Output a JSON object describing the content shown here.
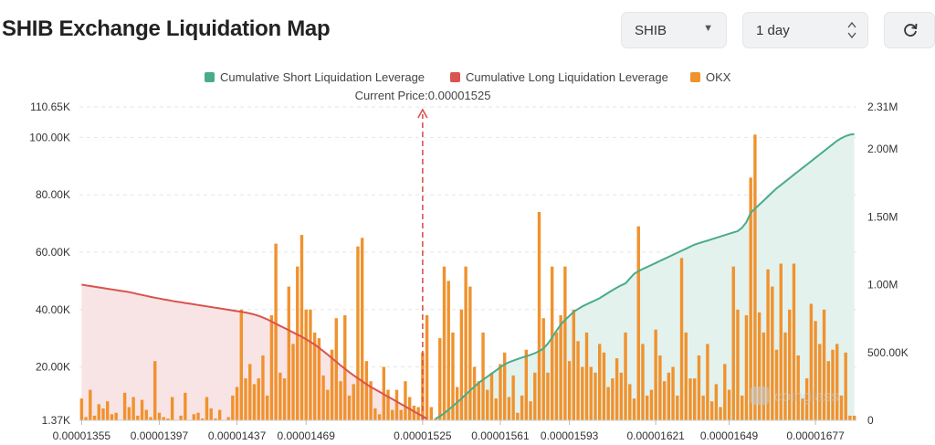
{
  "header": {
    "title": "SHIB Exchange Liquidation Map",
    "symbol_select": "SHIB",
    "range_select": "1 day"
  },
  "colors": {
    "short": "#4aab8a",
    "short_fill": "#e3f2ed",
    "long": "#d9534f",
    "long_fill": "#f8e4e4",
    "bar": "#f0922e",
    "price_marker": "#d9534f"
  },
  "chart_data": {
    "type": "bar",
    "legend": [
      "Cumulative Short Liquidation Leverage",
      "Cumulative Long Liquidation Leverage",
      "OKX"
    ],
    "legend_position": "top-center",
    "current_price_label": "Current Price:0.00001525",
    "current_price": 1.525e-05,
    "watermark": "coinglass",
    "x_tick_labels": [
      "0.00001355",
      "0.00001397",
      "0.00001437",
      "0.00001469",
      "0.00001525",
      "0.00001561",
      "0.00001593",
      "0.00001621",
      "0.00001649",
      "0.00001677"
    ],
    "x_tick_index": [
      0,
      18,
      36,
      52,
      79,
      97,
      113,
      133,
      150,
      170
    ],
    "x_min": 1.355e-05,
    "x_max": 1.677e-05,
    "y_left_ticks": [
      "1.37K",
      "20.00K",
      "40.00K",
      "60.00K",
      "80.00K",
      "100.00K",
      "110.65K"
    ],
    "y_left_tick_values": [
      1370,
      20000,
      40000,
      60000,
      80000,
      100000,
      110650
    ],
    "y_left_range": [
      1370,
      110650
    ],
    "y_right_ticks": [
      "0",
      "500.00K",
      "1.00M",
      "1.50M",
      "2.00M",
      "2.31M"
    ],
    "y_right_tick_values": [
      0,
      500000,
      1000000,
      1500000,
      2000000,
      2310000
    ],
    "y_right_range": [
      0,
      2310000
    ],
    "grid": true,
    "okx_values": [
      9000,
      2500,
      12000,
      3000,
      7000,
      5500,
      8000,
      3500,
      4000,
      1500,
      11000,
      6000,
      9500,
      3000,
      8500,
      5000,
      2500,
      22000,
      4000,
      2500,
      2000,
      9500,
      1500,
      3000,
      11000,
      1500,
      3500,
      4000,
      2000,
      9500,
      5500,
      2000,
      5000,
      1500,
      2500,
      10000,
      13000,
      40000,
      16000,
      21000,
      14000,
      16000,
      24000,
      10000,
      38000,
      63000,
      18000,
      16000,
      48000,
      28000,
      55000,
      66000,
      40000,
      40000,
      32000,
      30000,
      17000,
      12000,
      26000,
      37000,
      15000,
      38000,
      10000,
      14000,
      62000,
      65000,
      22000,
      15000,
      5500,
      3500,
      20000,
      12000,
      5000,
      12000,
      5000,
      15000,
      9500,
      6500,
      6000,
      25000,
      38000,
      6000,
      2000,
      30000,
      55000,
      50000,
      32000,
      13000,
      40000,
      55000,
      48000,
      20000,
      15000,
      32000,
      12000,
      18000,
      9000,
      21000,
      25000,
      9500,
      17000,
      4000,
      10000,
      26000,
      8000,
      18000,
      74000,
      37000,
      18000,
      55000,
      32000,
      38000,
      55000,
      22000,
      40000,
      29000,
      20000,
      32000,
      20000,
      18000,
      28000,
      25000,
      13000,
      16000,
      23000,
      18000,
      32000,
      14000,
      9000,
      69000,
      28000,
      10000,
      12000,
      33000,
      24000,
      15000,
      18000,
      20000,
      10000,
      58000,
      32000,
      16000,
      16000,
      24000,
      10000,
      28000,
      8000,
      14000,
      6000,
      21000,
      12000,
      55000,
      40000,
      10000,
      38000,
      86000,
      101000,
      39000,
      32000,
      54000,
      48000,
      26000,
      56000,
      32000,
      40000,
      56000,
      24000,
      9000,
      16000,
      42000,
      36000,
      28000,
      40000,
      22000,
      26000,
      28000,
      10000,
      25000,
      3000,
      3000
    ],
    "long_cumulative": [
      1000000,
      995000,
      990000,
      985000,
      980000,
      975000,
      970000,
      965000,
      960000,
      955000,
      950000,
      945000,
      938000,
      931000,
      924000,
      917000,
      910000,
      904000,
      898000,
      892000,
      886000,
      880000,
      875000,
      870000,
      865000,
      860000,
      855000,
      850000,
      845000,
      840000,
      835000,
      830000,
      825000,
      820000,
      815000,
      810000,
      805000,
      800000,
      795000,
      788000,
      780000,
      770000,
      758000,
      744000,
      728000,
      712000,
      696000,
      680000,
      664000,
      648000,
      632000,
      616000,
      598000,
      578000,
      558000,
      535000,
      510000,
      485000,
      458000,
      432000,
      405000,
      380000,
      355000,
      332000,
      310000,
      288000,
      266000,
      246000,
      228000,
      210000,
      192000,
      174000,
      156000,
      138000,
      120000,
      102000,
      84000,
      66000,
      48000,
      30000,
      12000
    ],
    "short_cumulative": [
      12000,
      30000,
      52000,
      78000,
      105000,
      132000,
      160000,
      190000,
      220000,
      248000,
      276000,
      300000,
      322000,
      345000,
      368000,
      392000,
      412000,
      428000,
      440000,
      452000,
      463000,
      473000,
      483000,
      495000,
      510000,
      530000,
      565000,
      610000,
      660000,
      705000,
      740000,
      770000,
      800000,
      820000,
      840000,
      855000,
      870000,
      885000,
      900000,
      920000,
      940000,
      960000,
      978000,
      995000,
      1010000,
      1045000,
      1080000,
      1100000,
      1115000,
      1130000,
      1145000,
      1160000,
      1175000,
      1190000,
      1205000,
      1220000,
      1235000,
      1250000,
      1265000,
      1280000,
      1295000,
      1305000,
      1315000,
      1325000,
      1335000,
      1345000,
      1355000,
      1365000,
      1375000,
      1385000,
      1395000,
      1420000,
      1460000,
      1530000,
      1560000,
      1590000,
      1620000,
      1650000,
      1680000,
      1710000,
      1735000,
      1760000,
      1785000,
      1810000,
      1835000,
      1860000,
      1885000,
      1910000,
      1935000,
      1960000,
      1985000,
      2010000,
      2035000,
      2060000,
      2080000,
      2095000,
      2105000,
      2110000
    ]
  }
}
